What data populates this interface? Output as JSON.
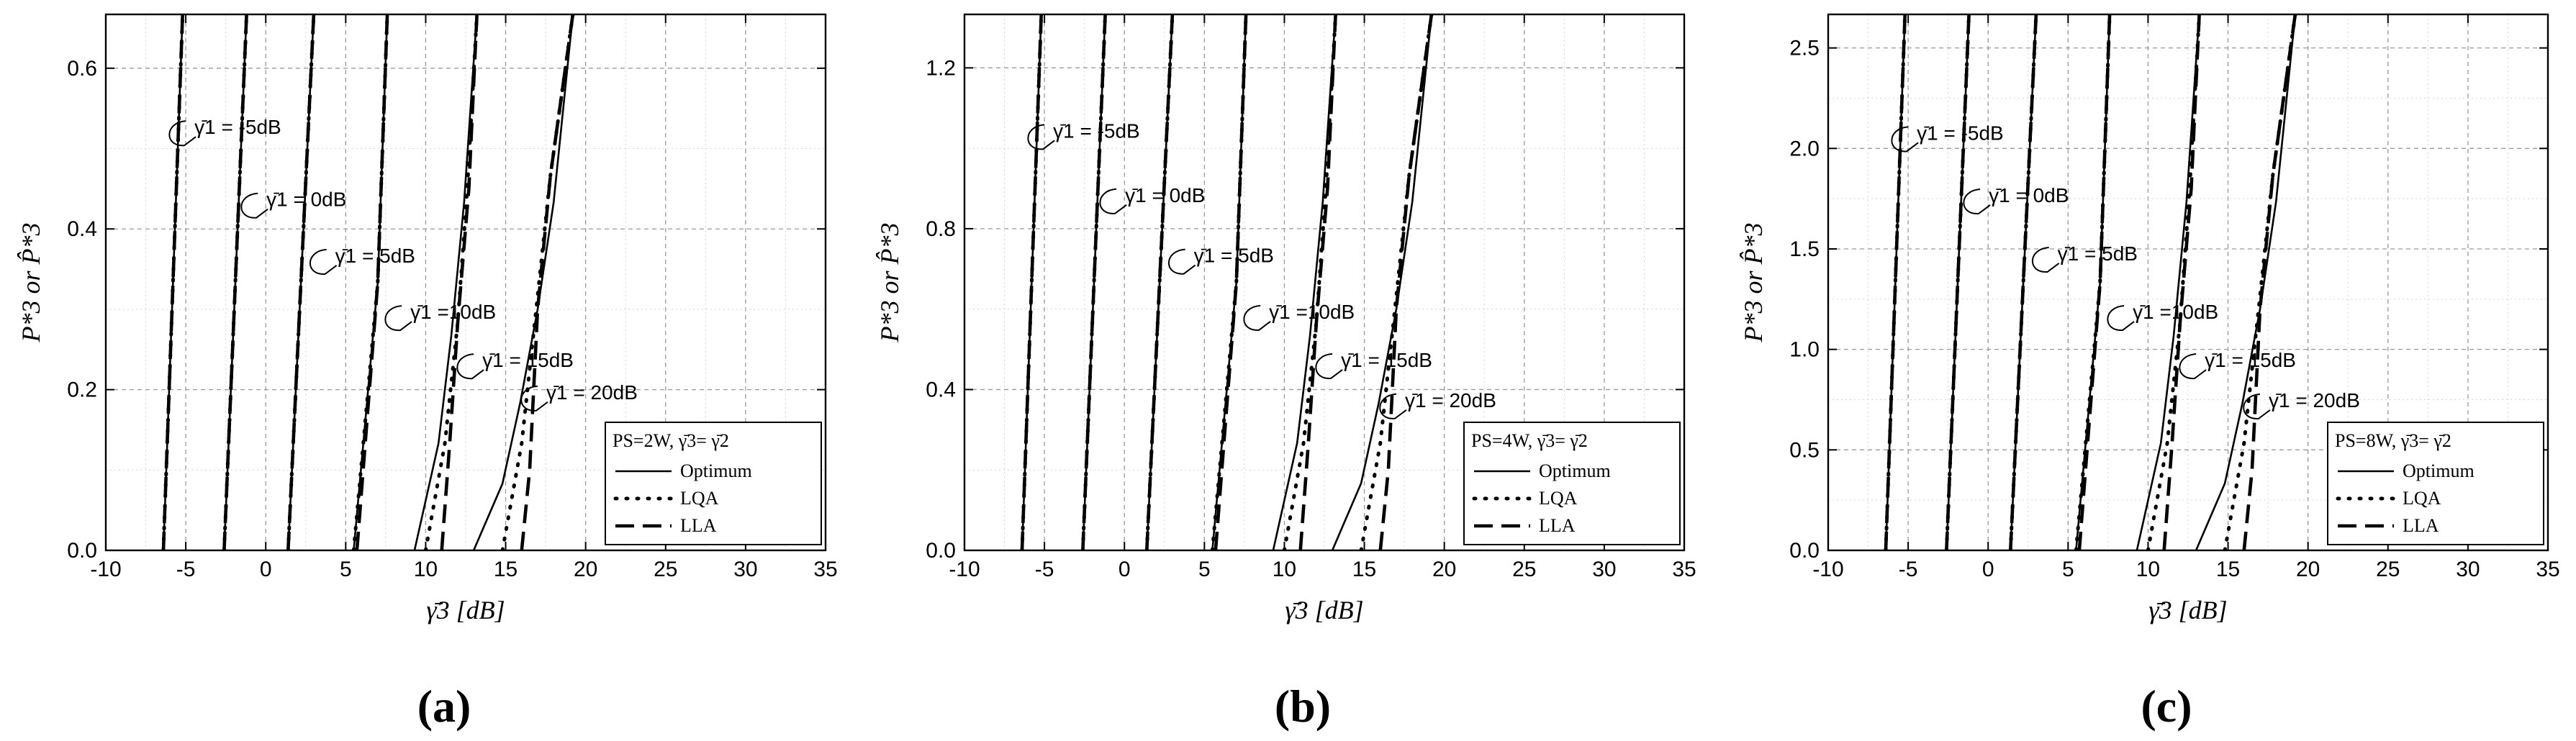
{
  "chart_data": [
    {
      "type": "line",
      "caption": "(a)",
      "xlabel": "γ̄3 [dB]",
      "ylabel": "P*3 or P̂*3",
      "xlim": [
        -10,
        35
      ],
      "ylim": [
        0,
        0.667
      ],
      "xticks": [
        -10,
        -5,
        0,
        5,
        10,
        15,
        20,
        25,
        30,
        35
      ],
      "yticks": [
        0.0,
        0.2,
        0.4,
        0.6
      ],
      "ytick_labels": [
        "0.0",
        "0.2",
        "0.4",
        "0.6"
      ],
      "grid": true,
      "legend": {
        "position": "bottom-right",
        "header": "PS=2W,  γ̄3= γ̄2",
        "entries": [
          "Optimum",
          "LQA",
          "LLA"
        ]
      },
      "annotations": [
        {
          "label": "γ̄1 = -5dB",
          "x": -5.0,
          "y": 0.52
        },
        {
          "label": "γ̄1 = 0dB",
          "x": -0.5,
          "y": 0.43
        },
        {
          "label": "γ̄1 = 5dB",
          "x": 3.8,
          "y": 0.36
        },
        {
          "label": "γ̄1 =10dB",
          "x": 8.5,
          "y": 0.29
        },
        {
          "label": "γ̄1 = 15dB",
          "x": 13.0,
          "y": 0.23
        },
        {
          "label": "γ̄1 = 20dB",
          "x": 17.0,
          "y": 0.19
        }
      ],
      "series": [
        {
          "name": "Optimum",
          "curves": [
            [
              [
                -6.4,
                0
              ],
              [
                -5.2,
                0.667
              ]
            ],
            [
              [
                -2.6,
                0
              ],
              [
                -1.2,
                0.667
              ]
            ],
            [
              [
                1.4,
                0
              ],
              [
                3.0,
                0.667
              ]
            ],
            [
              [
                5.5,
                0
              ],
              [
                7.0,
                0.333
              ],
              [
                7.6,
                0.667
              ]
            ],
            [
              [
                9.3,
                0
              ],
              [
                10.8,
                0.133
              ],
              [
                11.6,
                0.267
              ],
              [
                12.4,
                0.433
              ],
              [
                13.2,
                0.667
              ]
            ],
            [
              [
                13.0,
                0
              ],
              [
                14.8,
                0.083
              ],
              [
                15.9,
                0.183
              ],
              [
                17.0,
                0.3
              ],
              [
                18.0,
                0.433
              ],
              [
                19.2,
                0.667
              ]
            ]
          ]
        },
        {
          "name": "LQA",
          "curves": [
            [
              [
                -6.4,
                0
              ],
              [
                -5.2,
                0.667
              ]
            ],
            [
              [
                -2.6,
                0
              ],
              [
                -1.2,
                0.667
              ]
            ],
            [
              [
                1.4,
                0
              ],
              [
                3.0,
                0.667
              ]
            ],
            [
              [
                5.5,
                0
              ],
              [
                7.0,
                0.333
              ],
              [
                7.6,
                0.667
              ]
            ],
            [
              [
                10.0,
                0
              ],
              [
                11.2,
                0.133
              ],
              [
                12.0,
                0.283
              ],
              [
                12.6,
                0.45
              ],
              [
                13.2,
                0.667
              ]
            ],
            [
              [
                14.8,
                0
              ],
              [
                16.0,
                0.133
              ],
              [
                17.0,
                0.317
              ],
              [
                17.8,
                0.467
              ],
              [
                19.2,
                0.667
              ]
            ]
          ]
        },
        {
          "name": "LLA",
          "curves": [
            [
              [
                -6.4,
                0
              ],
              [
                -5.2,
                0.667
              ]
            ],
            [
              [
                -2.6,
                0
              ],
              [
                -1.2,
                0.667
              ]
            ],
            [
              [
                1.4,
                0
              ],
              [
                3.0,
                0.667
              ]
            ],
            [
              [
                5.7,
                0
              ],
              [
                7.0,
                0.333
              ],
              [
                7.6,
                0.667
              ]
            ],
            [
              [
                11.0,
                0
              ],
              [
                11.5,
                0.133
              ],
              [
                12.0,
                0.283
              ],
              [
                12.7,
                0.45
              ],
              [
                13.2,
                0.667
              ]
            ],
            [
              [
                16.0,
                0
              ],
              [
                16.5,
                0.1
              ],
              [
                17.0,
                0.3
              ],
              [
                17.8,
                0.467
              ],
              [
                19.2,
                0.667
              ]
            ]
          ]
        }
      ]
    },
    {
      "type": "line",
      "caption": "(b)",
      "xlabel": "γ̄3 [dB]",
      "ylabel": "P*3 or P̂*3",
      "xlim": [
        -10,
        35
      ],
      "ylim": [
        0,
        1.333
      ],
      "xticks": [
        -10,
        -5,
        0,
        5,
        10,
        15,
        20,
        25,
        30,
        35
      ],
      "yticks": [
        0.0,
        0.4,
        0.8,
        1.2
      ],
      "ytick_labels": [
        "0.0",
        "0.4",
        "0.8",
        "1.2"
      ],
      "grid": true,
      "legend": {
        "position": "bottom-right",
        "header": "PS=4W,  γ̄3= γ̄2",
        "entries": [
          "Optimum",
          "LQA",
          "LLA"
        ]
      },
      "annotations": [
        {
          "label": "γ̄1 = -5dB",
          "x": -5.0,
          "y": 1.03
        },
        {
          "label": "γ̄1 = 0dB",
          "x": -0.5,
          "y": 0.87
        },
        {
          "label": "γ̄1 = 5dB",
          "x": 3.8,
          "y": 0.72
        },
        {
          "label": "γ̄1 =10dB",
          "x": 8.5,
          "y": 0.58
        },
        {
          "label": "γ̄1 = 15dB",
          "x": 13.0,
          "y": 0.46
        },
        {
          "label": "γ̄1 = 20dB",
          "x": 17.0,
          "y": 0.36
        }
      ],
      "series": [
        {
          "name": "Optimum",
          "curves": [
            [
              [
                -6.4,
                0
              ],
              [
                -5.2,
                1.333
              ]
            ],
            [
              [
                -2.6,
                0
              ],
              [
                -1.2,
                1.333
              ]
            ],
            [
              [
                1.4,
                0
              ],
              [
                3.0,
                1.333
              ]
            ],
            [
              [
                5.5,
                0
              ],
              [
                7.0,
                0.667
              ],
              [
                7.6,
                1.333
              ]
            ],
            [
              [
                9.3,
                0
              ],
              [
                10.8,
                0.267
              ],
              [
                11.6,
                0.533
              ],
              [
                12.4,
                0.867
              ],
              [
                13.2,
                1.333
              ]
            ],
            [
              [
                13.0,
                0
              ],
              [
                14.8,
                0.167
              ],
              [
                15.9,
                0.367
              ],
              [
                17.0,
                0.6
              ],
              [
                18.0,
                0.867
              ],
              [
                19.2,
                1.333
              ]
            ]
          ]
        },
        {
          "name": "LQA",
          "curves": [
            [
              [
                -6.4,
                0
              ],
              [
                -5.2,
                1.333
              ]
            ],
            [
              [
                -2.6,
                0
              ],
              [
                -1.2,
                1.333
              ]
            ],
            [
              [
                1.4,
                0
              ],
              [
                3.0,
                1.333
              ]
            ],
            [
              [
                5.5,
                0
              ],
              [
                7.0,
                0.667
              ],
              [
                7.6,
                1.333
              ]
            ],
            [
              [
                10.0,
                0
              ],
              [
                11.2,
                0.267
              ],
              [
                12.0,
                0.567
              ],
              [
                12.6,
                0.9
              ],
              [
                13.2,
                1.333
              ]
            ],
            [
              [
                14.8,
                0
              ],
              [
                16.0,
                0.267
              ],
              [
                17.0,
                0.633
              ],
              [
                17.8,
                0.933
              ],
              [
                19.2,
                1.333
              ]
            ]
          ]
        },
        {
          "name": "LLA",
          "curves": [
            [
              [
                -6.4,
                0
              ],
              [
                -5.2,
                1.333
              ]
            ],
            [
              [
                -2.6,
                0
              ],
              [
                -1.2,
                1.333
              ]
            ],
            [
              [
                1.4,
                0
              ],
              [
                3.0,
                1.333
              ]
            ],
            [
              [
                5.7,
                0
              ],
              [
                7.0,
                0.667
              ],
              [
                7.6,
                1.333
              ]
            ],
            [
              [
                11.0,
                0
              ],
              [
                11.5,
                0.267
              ],
              [
                12.0,
                0.567
              ],
              [
                12.7,
                0.9
              ],
              [
                13.2,
                1.333
              ]
            ],
            [
              [
                16.0,
                0
              ],
              [
                16.5,
                0.2
              ],
              [
                17.0,
                0.6
              ],
              [
                17.8,
                0.933
              ],
              [
                19.2,
                1.333
              ]
            ]
          ]
        }
      ]
    },
    {
      "type": "line",
      "caption": "(c)",
      "xlabel": "γ̄3 [dB]",
      "ylabel": "P*3 or P̂*3",
      "xlim": [
        -10,
        35
      ],
      "ylim": [
        0,
        2.667
      ],
      "xticks": [
        -10,
        -5,
        0,
        5,
        10,
        15,
        20,
        25,
        30,
        35
      ],
      "yticks": [
        0.0,
        0.5,
        1.0,
        1.5,
        2.0,
        2.5
      ],
      "ytick_labels": [
        "0.0",
        "0.5",
        "1.0",
        "1.5",
        "2.0",
        "2.5"
      ],
      "grid": true,
      "legend": {
        "position": "bottom-right",
        "header": "PS=8W,  γ̄3= γ̄2",
        "entries": [
          "Optimum",
          "LQA",
          "LLA"
        ]
      },
      "annotations": [
        {
          "label": "γ̄1 = -5dB",
          "x": -5.0,
          "y": 2.05
        },
        {
          "label": "γ̄1 = 0dB",
          "x": -0.5,
          "y": 1.74
        },
        {
          "label": "γ̄1 = 5dB",
          "x": 3.8,
          "y": 1.45
        },
        {
          "label": "γ̄1 =10dB",
          "x": 8.5,
          "y": 1.16
        },
        {
          "label": "γ̄1 = 15dB",
          "x": 13.0,
          "y": 0.92
        },
        {
          "label": "γ̄1 = 20dB",
          "x": 17.0,
          "y": 0.72
        }
      ],
      "series": [
        {
          "name": "Optimum",
          "curves": [
            [
              [
                -6.4,
                0
              ],
              [
                -5.2,
                2.667
              ]
            ],
            [
              [
                -2.6,
                0
              ],
              [
                -1.2,
                2.667
              ]
            ],
            [
              [
                1.4,
                0
              ],
              [
                3.0,
                2.667
              ]
            ],
            [
              [
                5.5,
                0
              ],
              [
                7.0,
                1.333
              ],
              [
                7.6,
                2.667
              ]
            ],
            [
              [
                9.3,
                0
              ],
              [
                10.8,
                0.533
              ],
              [
                11.6,
                1.067
              ],
              [
                12.4,
                1.733
              ],
              [
                13.2,
                2.667
              ]
            ],
            [
              [
                13.0,
                0
              ],
              [
                14.8,
                0.333
              ],
              [
                15.9,
                0.733
              ],
              [
                17.0,
                1.2
              ],
              [
                18.0,
                1.733
              ],
              [
                19.2,
                2.667
              ]
            ]
          ]
        },
        {
          "name": "LQA",
          "curves": [
            [
              [
                -6.4,
                0
              ],
              [
                -5.2,
                2.667
              ]
            ],
            [
              [
                -2.6,
                0
              ],
              [
                -1.2,
                2.667
              ]
            ],
            [
              [
                1.4,
                0
              ],
              [
                3.0,
                2.667
              ]
            ],
            [
              [
                5.5,
                0
              ],
              [
                7.0,
                1.333
              ],
              [
                7.6,
                2.667
              ]
            ],
            [
              [
                10.0,
                0
              ],
              [
                11.2,
                0.533
              ],
              [
                12.0,
                1.133
              ],
              [
                12.6,
                1.8
              ],
              [
                13.2,
                2.667
              ]
            ],
            [
              [
                14.8,
                0
              ],
              [
                16.0,
                0.533
              ],
              [
                17.0,
                1.267
              ],
              [
                17.8,
                1.867
              ],
              [
                19.2,
                2.667
              ]
            ]
          ]
        },
        {
          "name": "LLA",
          "curves": [
            [
              [
                -6.4,
                0
              ],
              [
                -5.2,
                2.667
              ]
            ],
            [
              [
                -2.6,
                0
              ],
              [
                -1.2,
                2.667
              ]
            ],
            [
              [
                1.4,
                0
              ],
              [
                3.0,
                2.667
              ]
            ],
            [
              [
                5.7,
                0
              ],
              [
                7.0,
                1.333
              ],
              [
                7.6,
                2.667
              ]
            ],
            [
              [
                11.0,
                0
              ],
              [
                11.5,
                0.533
              ],
              [
                12.0,
                1.133
              ],
              [
                12.7,
                1.8
              ],
              [
                13.2,
                2.667
              ]
            ],
            [
              [
                16.0,
                0
              ],
              [
                16.5,
                0.4
              ],
              [
                17.0,
                1.2
              ],
              [
                17.8,
                1.867
              ],
              [
                19.2,
                2.667
              ]
            ]
          ]
        }
      ]
    }
  ]
}
